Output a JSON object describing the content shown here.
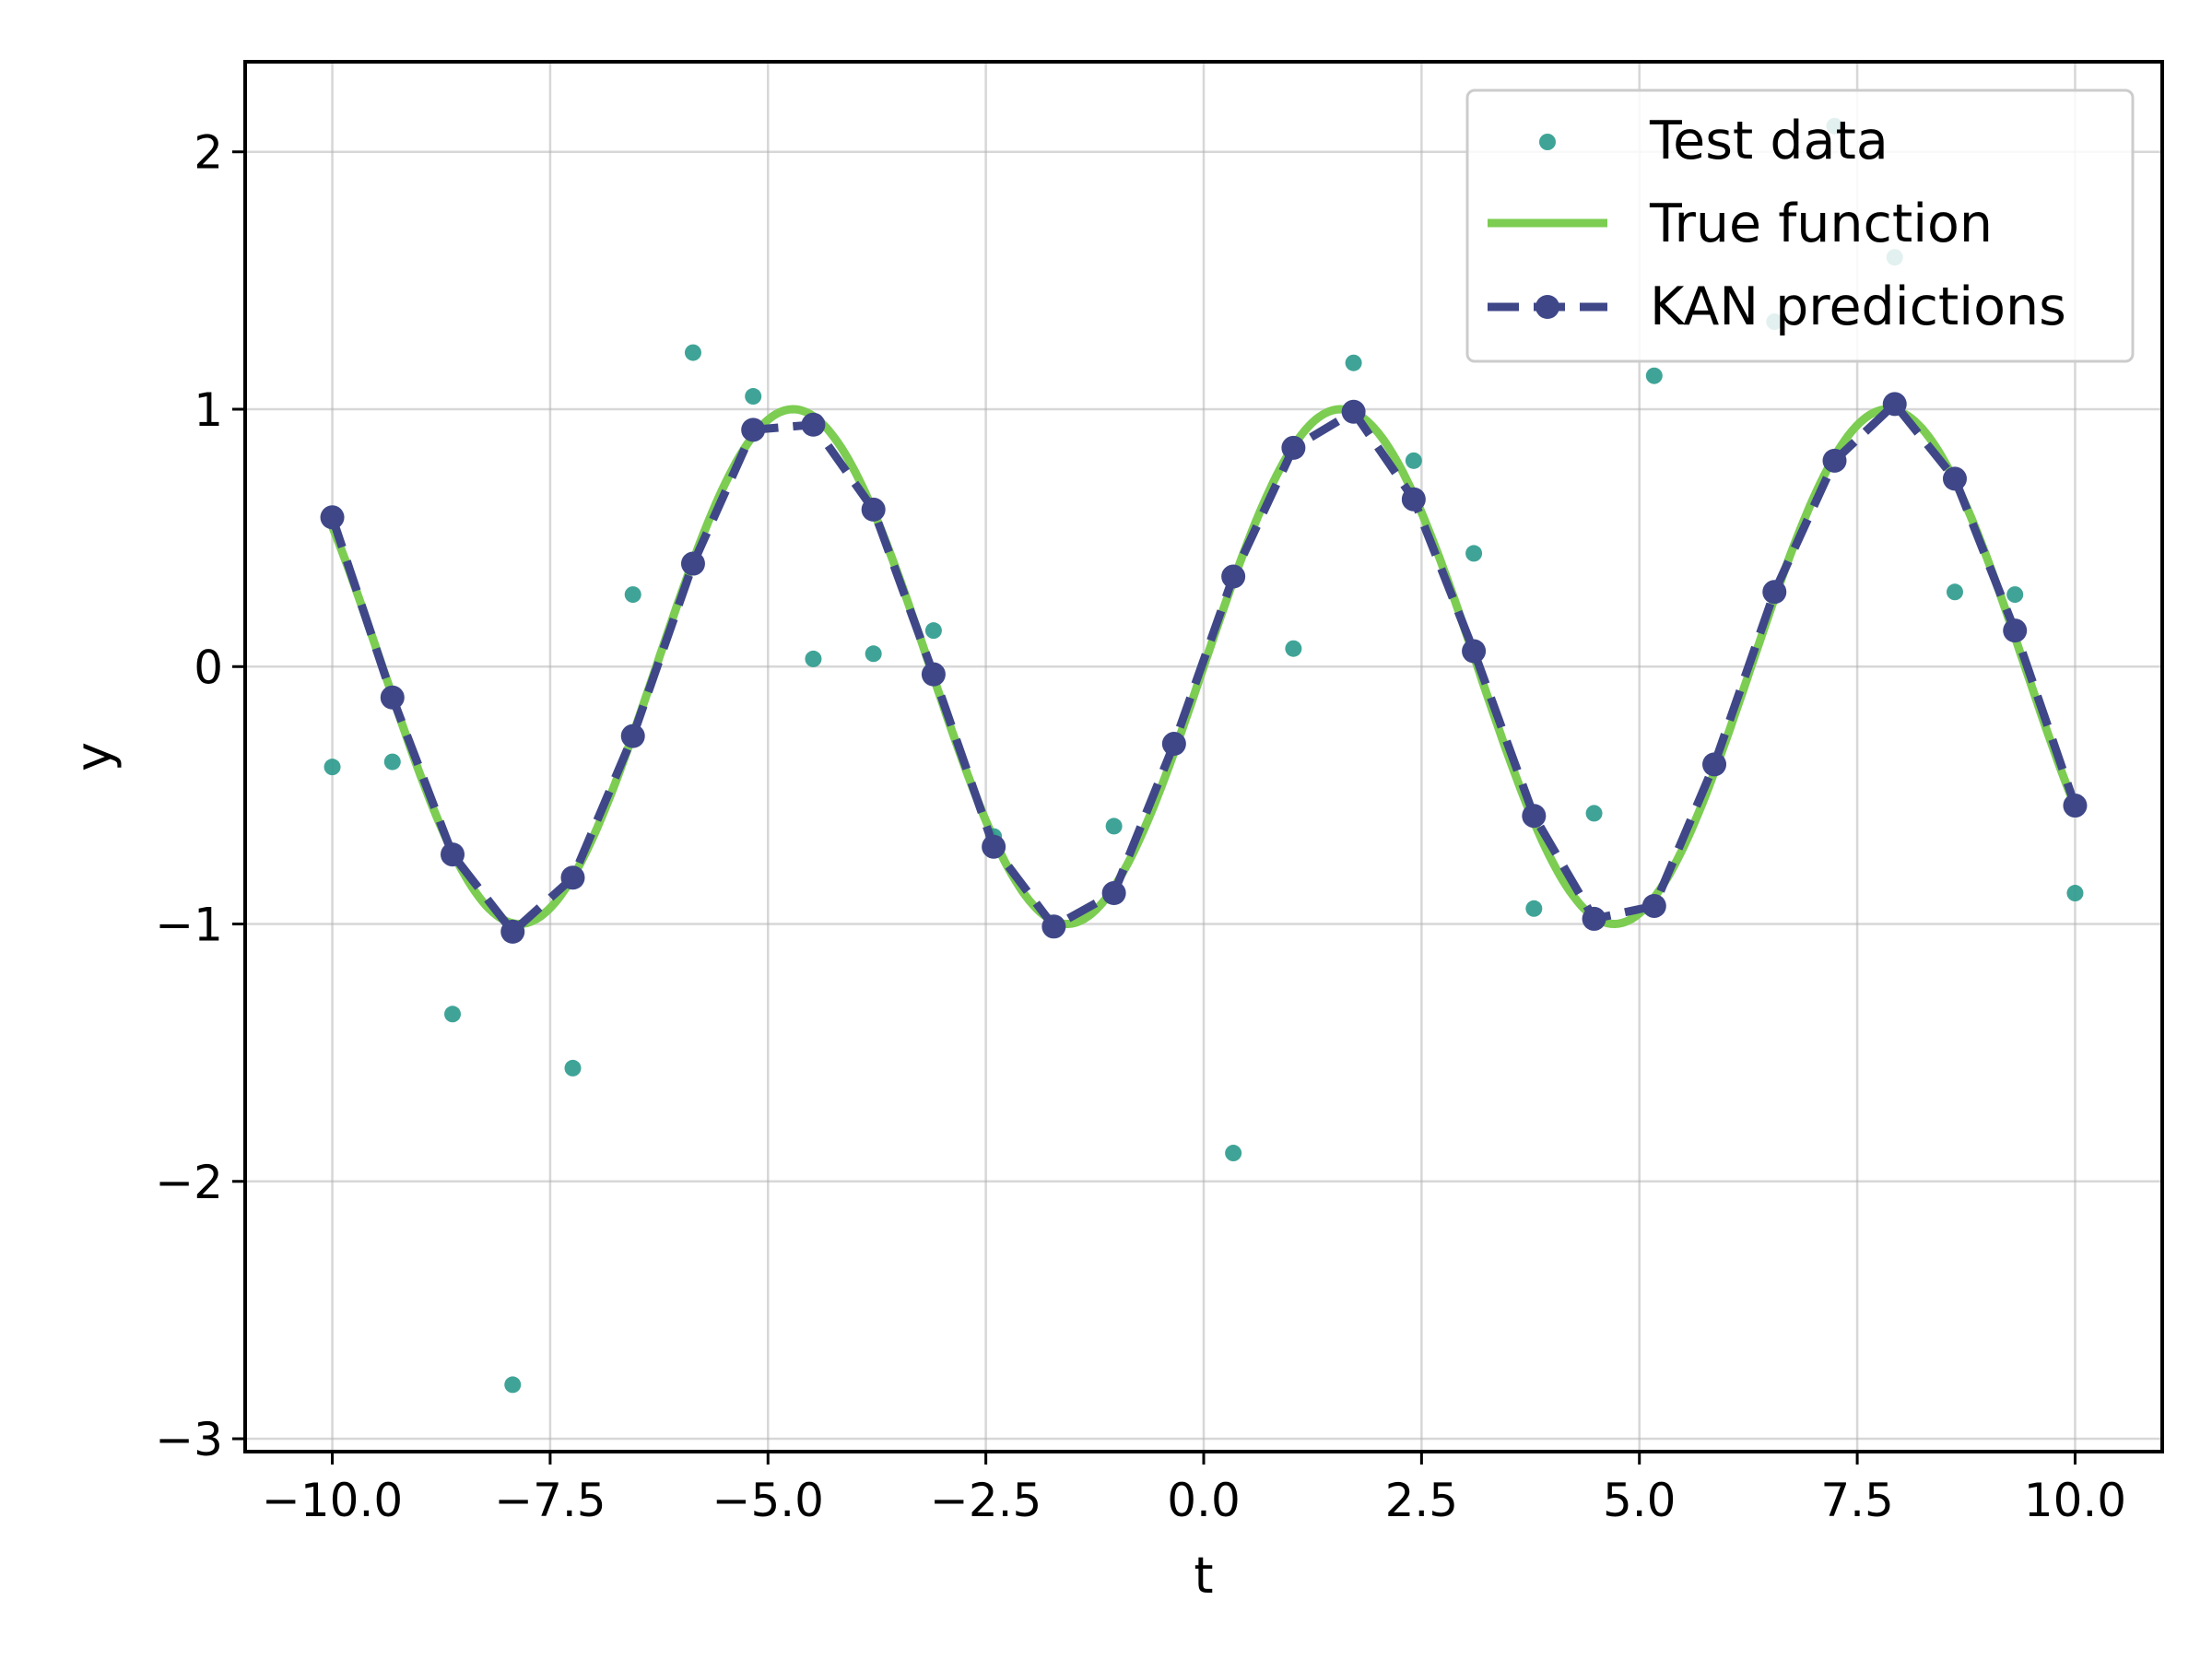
{
  "chart_data": {
    "type": "line",
    "title": "",
    "xlabel": "t",
    "ylabel": "y",
    "xlim": [
      -11.0,
      11.0
    ],
    "ylim": [
      -3.05,
      2.35
    ],
    "grid": true,
    "legend_position": "top-right",
    "xticks": [
      -10.0,
      -7.5,
      -5.0,
      -2.5,
      0.0,
      2.5,
      5.0,
      7.5,
      10.0
    ],
    "xtick_labels": [
      "−10.0",
      "−7.5",
      "−5.0",
      "−2.5",
      "0.0",
      "2.5",
      "5.0",
      "7.5",
      "10.0"
    ],
    "yticks": [
      -3,
      -2,
      -1,
      0,
      1,
      2
    ],
    "ytick_labels": [
      "−3",
      "−2",
      "−1",
      "0",
      "1",
      "2"
    ],
    "series": [
      {
        "name": "Test data",
        "kind": "scatter",
        "color": "#2a9a8c",
        "x": [
          -10.0,
          -9.31,
          -8.62,
          -7.93,
          -7.24,
          -6.55,
          -5.86,
          -5.17,
          -4.48,
          -3.79,
          -3.1,
          -2.41,
          -1.72,
          -1.03,
          -0.34,
          0.34,
          1.03,
          1.72,
          2.41,
          3.1,
          3.79,
          4.48,
          5.17,
          5.86,
          6.55,
          7.24,
          7.93,
          8.62,
          9.31,
          10.0
        ],
        "y": [
          -0.39,
          -0.37,
          -1.35,
          -2.79,
          -1.56,
          0.28,
          1.22,
          1.05,
          0.03,
          0.05,
          0.14,
          -0.66,
          -1.01,
          -0.62,
          -0.31,
          -1.89,
          0.07,
          1.18,
          0.8,
          0.44,
          -0.94,
          -0.57,
          1.13,
          -0.38,
          1.34,
          2.1,
          1.59,
          0.29,
          0.28,
          -0.88
        ]
      },
      {
        "name": "True function",
        "kind": "line",
        "color": "#7ccd52",
        "function": "sin(t)",
        "x_range": [
          -10.0,
          10.0
        ]
      },
      {
        "name": "KAN predictions",
        "kind": "line-markers",
        "color": "#3f4788",
        "x": [
          -10.0,
          -9.31,
          -8.62,
          -7.93,
          -7.24,
          -6.55,
          -5.86,
          -5.17,
          -4.48,
          -3.79,
          -3.1,
          -2.41,
          -1.72,
          -1.03,
          -0.34,
          0.34,
          1.03,
          1.72,
          2.41,
          3.1,
          3.79,
          4.48,
          5.17,
          5.86,
          6.55,
          7.24,
          7.93,
          8.62,
          9.31,
          10.0
        ],
        "y": [
          0.58,
          -0.12,
          -0.73,
          -1.03,
          -0.82,
          -0.27,
          0.4,
          0.92,
          0.94,
          0.61,
          -0.03,
          -0.7,
          -1.01,
          -0.88,
          -0.3,
          0.35,
          0.85,
          0.99,
          0.65,
          0.06,
          -0.58,
          -0.98,
          -0.93,
          -0.38,
          0.29,
          0.8,
          1.02,
          0.73,
          0.14,
          -0.54
        ]
      }
    ]
  }
}
